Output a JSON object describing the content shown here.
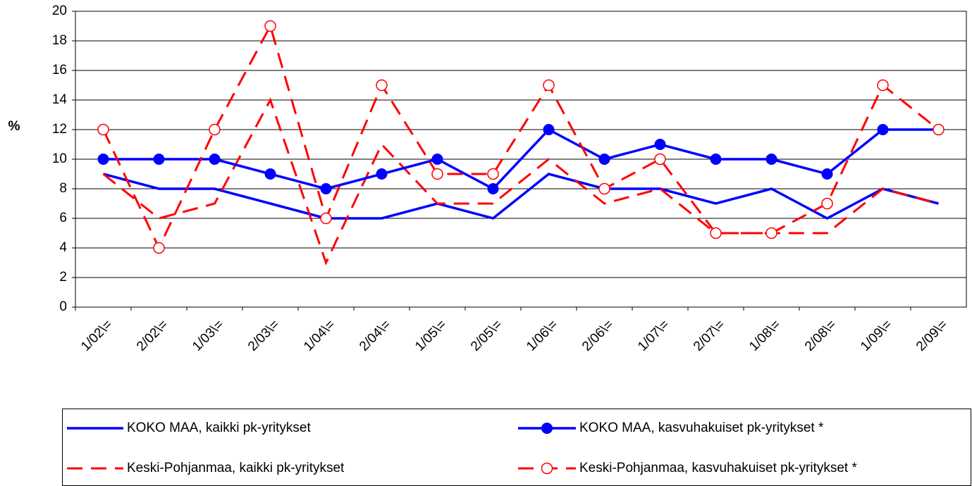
{
  "chart_data": {
    "type": "line",
    "y_label": "%",
    "categories": [
      "1/02\\=",
      "2/02\\=",
      "1/03\\=",
      "2/03\\=",
      "1/04\\=",
      "2/04\\=",
      "1/05\\=",
      "2/05\\=",
      "1/06\\=",
      "2/06\\=",
      "1/07\\=",
      "2/07\\=",
      "1/08\\=",
      "2/08\\=",
      "1/09\\=",
      "2/09\\="
    ],
    "series": [
      {
        "name": "KOKO MAA, kaikki pk-yritykset",
        "color": "#0000ff",
        "line_style": "solid",
        "marker": "none",
        "values": [
          9,
          8,
          8,
          7,
          6,
          6,
          7,
          6,
          9,
          8,
          8,
          7,
          8,
          6,
          8,
          7
        ]
      },
      {
        "name": "Keski-Pohjanmaa, kaikki pk-yritykset",
        "color": "#ff0000",
        "line_style": "dashed",
        "marker": "none",
        "values": [
          9,
          6,
          7,
          14,
          3,
          11,
          7,
          7,
          10,
          7,
          8,
          5,
          5,
          5,
          8,
          7
        ]
      },
      {
        "name": "KOKO MAA, kasvuhakuiset pk-yritykset *",
        "color": "#0000ff",
        "line_style": "solid",
        "marker": "filled-circle",
        "values": [
          10,
          10,
          10,
          9,
          8,
          9,
          10,
          8,
          12,
          10,
          11,
          10,
          10,
          9,
          12,
          12
        ]
      },
      {
        "name": "Keski-Pohjanmaa, kasvuhakuiset pk-yritykset *",
        "color": "#ff0000",
        "line_style": "dashed",
        "marker": "open-circle",
        "values": [
          12,
          4,
          12,
          19,
          6,
          15,
          9,
          9,
          15,
          8,
          10,
          5,
          5,
          7,
          15,
          12
        ]
      }
    ],
    "ylim": [
      0,
      20
    ],
    "yticks": [
      0,
      2,
      4,
      6,
      8,
      10,
      12,
      14,
      16,
      18,
      20
    ],
    "grid": true,
    "legend": "bottom"
  }
}
